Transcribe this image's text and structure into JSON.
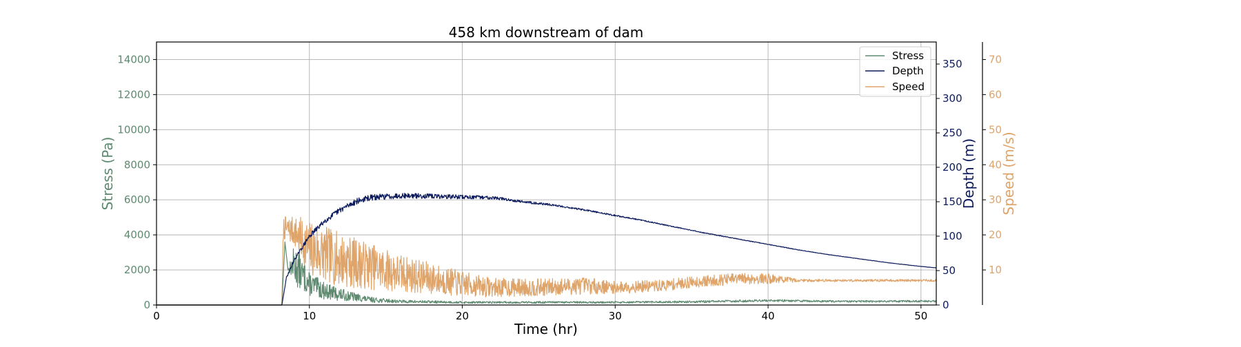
{
  "chart_data": {
    "type": "line",
    "title": "458 km downstream of dam",
    "xlabel": "Time (hr)",
    "xlim": [
      0,
      51
    ],
    "xticks": [
      0,
      10,
      20,
      30,
      40,
      50
    ],
    "grid": true,
    "legend_position": "top-right",
    "series": [
      {
        "name": "Stress",
        "axis": "left",
        "color": "#5e8a70",
        "ylabel": "Stress (Pa)",
        "ylim": [
          0,
          15000
        ],
        "yticks": [
          0,
          2000,
          4000,
          6000,
          8000,
          10000,
          12000,
          14000
        ],
        "points": [
          [
            0,
            0
          ],
          [
            8.2,
            0
          ],
          [
            8.4,
            3600
          ],
          [
            8.6,
            2000
          ],
          [
            9,
            2300
          ],
          [
            10,
            1200
          ],
          [
            11,
            800
          ],
          [
            12,
            600
          ],
          [
            14,
            300
          ],
          [
            16,
            200
          ],
          [
            20,
            150
          ],
          [
            25,
            150
          ],
          [
            30,
            150
          ],
          [
            35,
            180
          ],
          [
            40,
            260
          ],
          [
            45,
            200
          ],
          [
            50,
            220
          ],
          [
            51,
            220
          ]
        ],
        "noise": [
          0,
          0,
          0,
          0,
          0.5,
          0.55,
          0.6,
          0.6,
          0.5,
          0.45,
          0.4,
          0.4,
          0.35,
          0.35,
          0.25,
          0.25,
          0.25,
          0.25
        ]
      },
      {
        "name": "Depth",
        "axis": "right",
        "color": "#0d1b5c",
        "ylabel": "Depth (m)",
        "ylim": [
          0,
          382
        ],
        "yticks": [
          0,
          50,
          100,
          150,
          200,
          250,
          300,
          350
        ],
        "points": [
          [
            0,
            0
          ],
          [
            8.2,
            0
          ],
          [
            8.5,
            40
          ],
          [
            9,
            65
          ],
          [
            10,
            100
          ],
          [
            11,
            122
          ],
          [
            12,
            138
          ],
          [
            13,
            150
          ],
          [
            14,
            156
          ],
          [
            16,
            159
          ],
          [
            18,
            158
          ],
          [
            20,
            157
          ],
          [
            22,
            156
          ],
          [
            24,
            150
          ],
          [
            26,
            145
          ],
          [
            28,
            138
          ],
          [
            30,
            130
          ],
          [
            32,
            122
          ],
          [
            34,
            113
          ],
          [
            36,
            104
          ],
          [
            38,
            96
          ],
          [
            40,
            88
          ],
          [
            42,
            80
          ],
          [
            44,
            73
          ],
          [
            46,
            67
          ],
          [
            48,
            61
          ],
          [
            50,
            56
          ],
          [
            51,
            54
          ]
        ],
        "noise": [
          0,
          0,
          0.03,
          0.03,
          0.035,
          0.03,
          0.03,
          0.03,
          0.028,
          0.025,
          0.022,
          0.02,
          0.015,
          0.012,
          0.01,
          0.009,
          0.008,
          0.007,
          0.006,
          0.006,
          0.005,
          0.005,
          0.005,
          0.004,
          0.004,
          0.004,
          0.004,
          0.004
        ]
      },
      {
        "name": "Speed",
        "axis": "right2",
        "color": "#dfa46a",
        "ylabel": "Speed (m/s)",
        "ylim": [
          0,
          75
        ],
        "yticks": [
          10,
          20,
          30,
          40,
          50,
          60,
          70
        ],
        "points": [
          [
            0,
            0
          ],
          [
            8.2,
            0
          ],
          [
            8.3,
            22
          ],
          [
            9,
            21
          ],
          [
            10,
            16
          ],
          [
            12,
            13
          ],
          [
            14,
            11
          ],
          [
            16,
            9
          ],
          [
            18,
            7.5
          ],
          [
            20,
            6
          ],
          [
            22,
            5
          ],
          [
            25,
            5
          ],
          [
            28,
            5.5
          ],
          [
            30,
            5
          ],
          [
            33,
            5.5
          ],
          [
            35,
            6.5
          ],
          [
            38,
            7.5
          ],
          [
            40,
            7.5
          ],
          [
            42,
            7
          ],
          [
            45,
            7
          ],
          [
            48,
            7
          ],
          [
            51,
            7
          ]
        ],
        "noise": [
          0,
          0,
          0.15,
          0.2,
          0.5,
          0.6,
          0.6,
          0.6,
          0.6,
          0.6,
          0.55,
          0.5,
          0.45,
          0.35,
          0.3,
          0.25,
          0.22,
          0.2,
          0.06,
          0.05,
          0.05,
          0.05
        ]
      }
    ]
  }
}
